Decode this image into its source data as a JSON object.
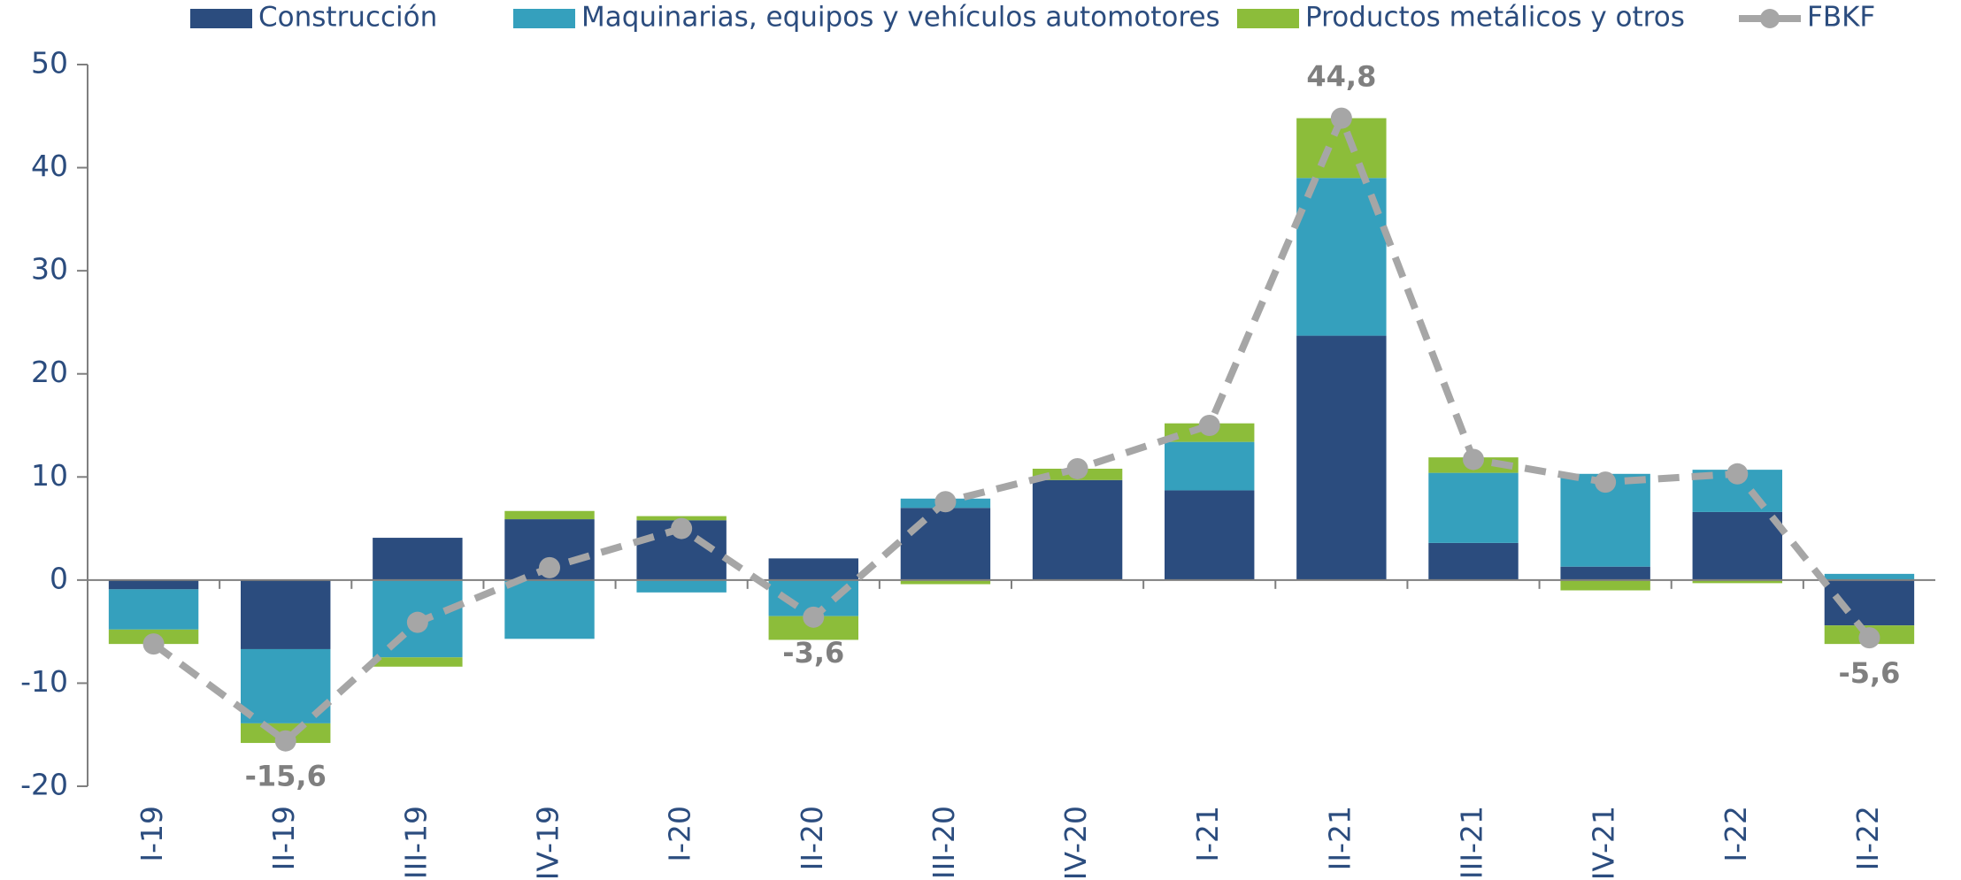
{
  "chart_data": {
    "type": "bar",
    "categories": [
      "I-19",
      "II-19",
      "III-19",
      "IV-19",
      "I-20",
      "II-20",
      "III-20",
      "IV-20",
      "I-21",
      "II-21",
      "III-21",
      "IV-21",
      "I-22",
      "II-22"
    ],
    "series": [
      {
        "name": "Construcción",
        "color": "#2b4c7e",
        "values": [
          -0.9,
          -6.7,
          4.1,
          5.9,
          5.8,
          2.1,
          7.0,
          9.7,
          8.7,
          23.7,
          3.6,
          1.3,
          6.6,
          -4.4
        ]
      },
      {
        "name": "Maquinarias, equipos y vehículos automotores",
        "color": "#35a0bd",
        "values": [
          -3.9,
          -7.2,
          -7.5,
          -5.7,
          -1.2,
          -3.5,
          0.9,
          0.0,
          4.7,
          15.3,
          6.8,
          9.0,
          4.1,
          0.6
        ]
      },
      {
        "name": "Productos metálicos y otros",
        "color": "#8cbd3a",
        "values": [
          -1.4,
          -1.9,
          -0.9,
          0.8,
          0.4,
          -2.3,
          -0.4,
          1.1,
          1.8,
          5.8,
          1.5,
          -1.0,
          -0.3,
          -1.8
        ]
      },
      {
        "name": "FBKF",
        "type": "line",
        "color": "#a6a6a6",
        "values": [
          -6.2,
          -15.6,
          -4.1,
          1.2,
          5.0,
          -3.6,
          7.6,
          10.8,
          15.0,
          44.8,
          11.7,
          9.5,
          10.3,
          -5.6
        ],
        "value_labels": [
          null,
          "-15,6",
          null,
          null,
          null,
          "-3,6",
          null,
          null,
          null,
          "44,8",
          null,
          null,
          null,
          "-5,6"
        ]
      }
    ],
    "ylim": [
      -20,
      50
    ],
    "yticks": [
      -20,
      -10,
      0,
      10,
      20,
      30,
      40,
      50
    ],
    "legend": "top"
  }
}
